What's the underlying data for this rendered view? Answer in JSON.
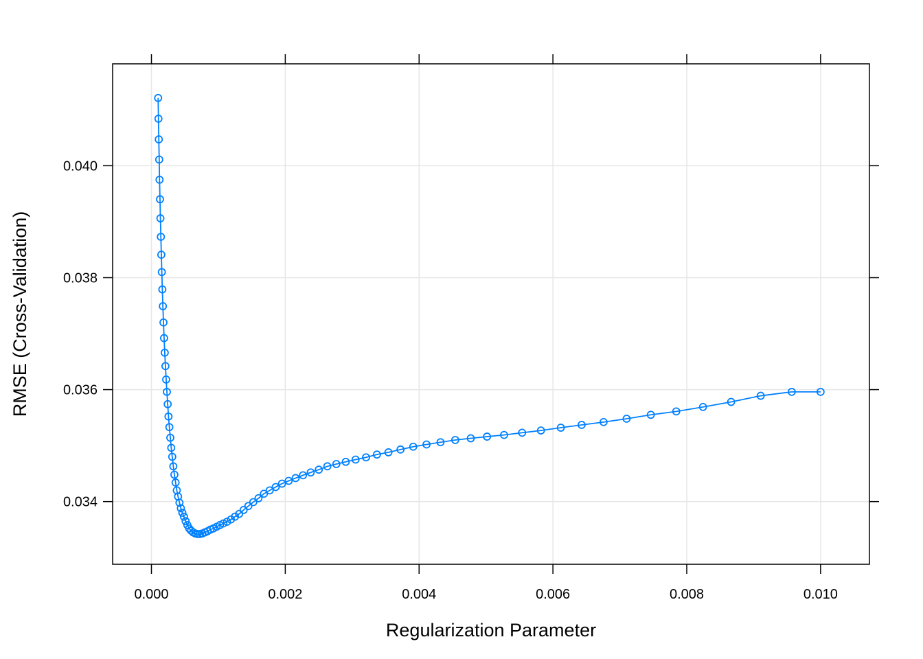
{
  "chart_data": {
    "type": "line",
    "title": "",
    "xlabel": "Regularization Parameter",
    "ylabel": "RMSE (Cross-Validation)",
    "xlim": [
      -0.00058,
      0.01073
    ],
    "ylim": [
      0.03288,
      0.04182
    ],
    "xticks": [
      0.0,
      0.002,
      0.004,
      0.006,
      0.008,
      0.01
    ],
    "xtick_labels": [
      "0.000",
      "0.002",
      "0.004",
      "0.006",
      "0.008",
      "0.010"
    ],
    "yticks": [
      0.034,
      0.036,
      0.038,
      0.04
    ],
    "ytick_labels": [
      "0.034",
      "0.036",
      "0.038",
      "0.040"
    ],
    "grid": true,
    "legend": "none",
    "series": [
      {
        "color": "#0080ff",
        "marker": "open-circle",
        "points": [
          [
            0.0001,
            0.04121
          ],
          [
            0.000105,
            0.04084
          ],
          [
            0.00011,
            0.04047
          ],
          [
            0.000116,
            0.04011
          ],
          [
            0.000121,
            0.03975
          ],
          [
            0.000128,
            0.0394
          ],
          [
            0.000134,
            0.03906
          ],
          [
            0.000141,
            0.03873
          ],
          [
            0.000148,
            0.03841
          ],
          [
            0.000155,
            0.0381
          ],
          [
            0.000163,
            0.03779
          ],
          [
            0.000171,
            0.03749
          ],
          [
            0.00018,
            0.0372
          ],
          [
            0.000189,
            0.03692
          ],
          [
            0.000199,
            0.03666
          ],
          [
            0.000209,
            0.03642
          ],
          [
            0.00022,
            0.03618
          ],
          [
            0.000231,
            0.03596
          ],
          [
            0.000243,
            0.03574
          ],
          [
            0.000255,
            0.03552
          ],
          [
            0.000268,
            0.03533
          ],
          [
            0.000282,
            0.03514
          ],
          [
            0.000296,
            0.03496
          ],
          [
            0.000311,
            0.0348
          ],
          [
            0.000327,
            0.03463
          ],
          [
            0.000343,
            0.03448
          ],
          [
            0.000361,
            0.03434
          ],
          [
            0.000379,
            0.0342
          ],
          [
            0.000398,
            0.03409
          ],
          [
            0.000419,
            0.03398
          ],
          [
            0.00044,
            0.03388
          ],
          [
            0.000462,
            0.0338
          ],
          [
            0.000486,
            0.03373
          ],
          [
            0.000511,
            0.03365
          ],
          [
            0.000537,
            0.03358
          ],
          [
            0.000564,
            0.03352
          ],
          [
            0.000593,
            0.03348
          ],
          [
            0.000623,
            0.03345
          ],
          [
            0.000655,
            0.03343
          ],
          [
            0.000688,
            0.03342
          ],
          [
            0.000723,
            0.03342
          ],
          [
            0.00076,
            0.03343
          ],
          [
            0.000798,
            0.03345
          ],
          [
            0.000839,
            0.03347
          ],
          [
            0.000882,
            0.0335
          ],
          [
            0.000926,
            0.03352
          ],
          [
            0.000974,
            0.03355
          ],
          [
            0.001023,
            0.03358
          ],
          [
            0.001075,
            0.03361
          ],
          [
            0.00113,
            0.03364
          ],
          [
            0.001187,
            0.03368
          ],
          [
            0.001248,
            0.03373
          ],
          [
            0.001311,
            0.03378
          ],
          [
            0.001378,
            0.03385
          ],
          [
            0.001448,
            0.03392
          ],
          [
            0.001522,
            0.03399
          ],
          [
            0.0016,
            0.03406
          ],
          [
            0.001681,
            0.03414
          ],
          [
            0.001767,
            0.0342
          ],
          [
            0.001857,
            0.03426
          ],
          [
            0.001951,
            0.03432
          ],
          [
            0.002051,
            0.03437
          ],
          [
            0.002155,
            0.03442
          ],
          [
            0.002265,
            0.03447
          ],
          [
            0.00238,
            0.03452
          ],
          [
            0.002501,
            0.03457
          ],
          [
            0.002629,
            0.03463
          ],
          [
            0.002763,
            0.03467
          ],
          [
            0.002904,
            0.03471
          ],
          [
            0.003051,
            0.03475
          ],
          [
            0.003207,
            0.03479
          ],
          [
            0.00337,
            0.03484
          ],
          [
            0.003542,
            0.03488
          ],
          [
            0.003722,
            0.03493
          ],
          [
            0.003912,
            0.03498
          ],
          [
            0.004111,
            0.03502
          ],
          [
            0.00432,
            0.03506
          ],
          [
            0.00454,
            0.0351
          ],
          [
            0.004772,
            0.03513
          ],
          [
            0.005015,
            0.03516
          ],
          [
            0.00527,
            0.03519
          ],
          [
            0.005539,
            0.03523
          ],
          [
            0.005821,
            0.03527
          ],
          [
            0.006118,
            0.03532
          ],
          [
            0.006429,
            0.03537
          ],
          [
            0.006757,
            0.03542
          ],
          [
            0.007101,
            0.03548
          ],
          [
            0.007463,
            0.03555
          ],
          [
            0.007843,
            0.03561
          ],
          [
            0.008243,
            0.03569
          ],
          [
            0.008663,
            0.03578
          ],
          [
            0.009105,
            0.03589
          ],
          [
            0.009569,
            0.03596
          ],
          [
            0.01,
            0.03596
          ]
        ]
      }
    ]
  }
}
